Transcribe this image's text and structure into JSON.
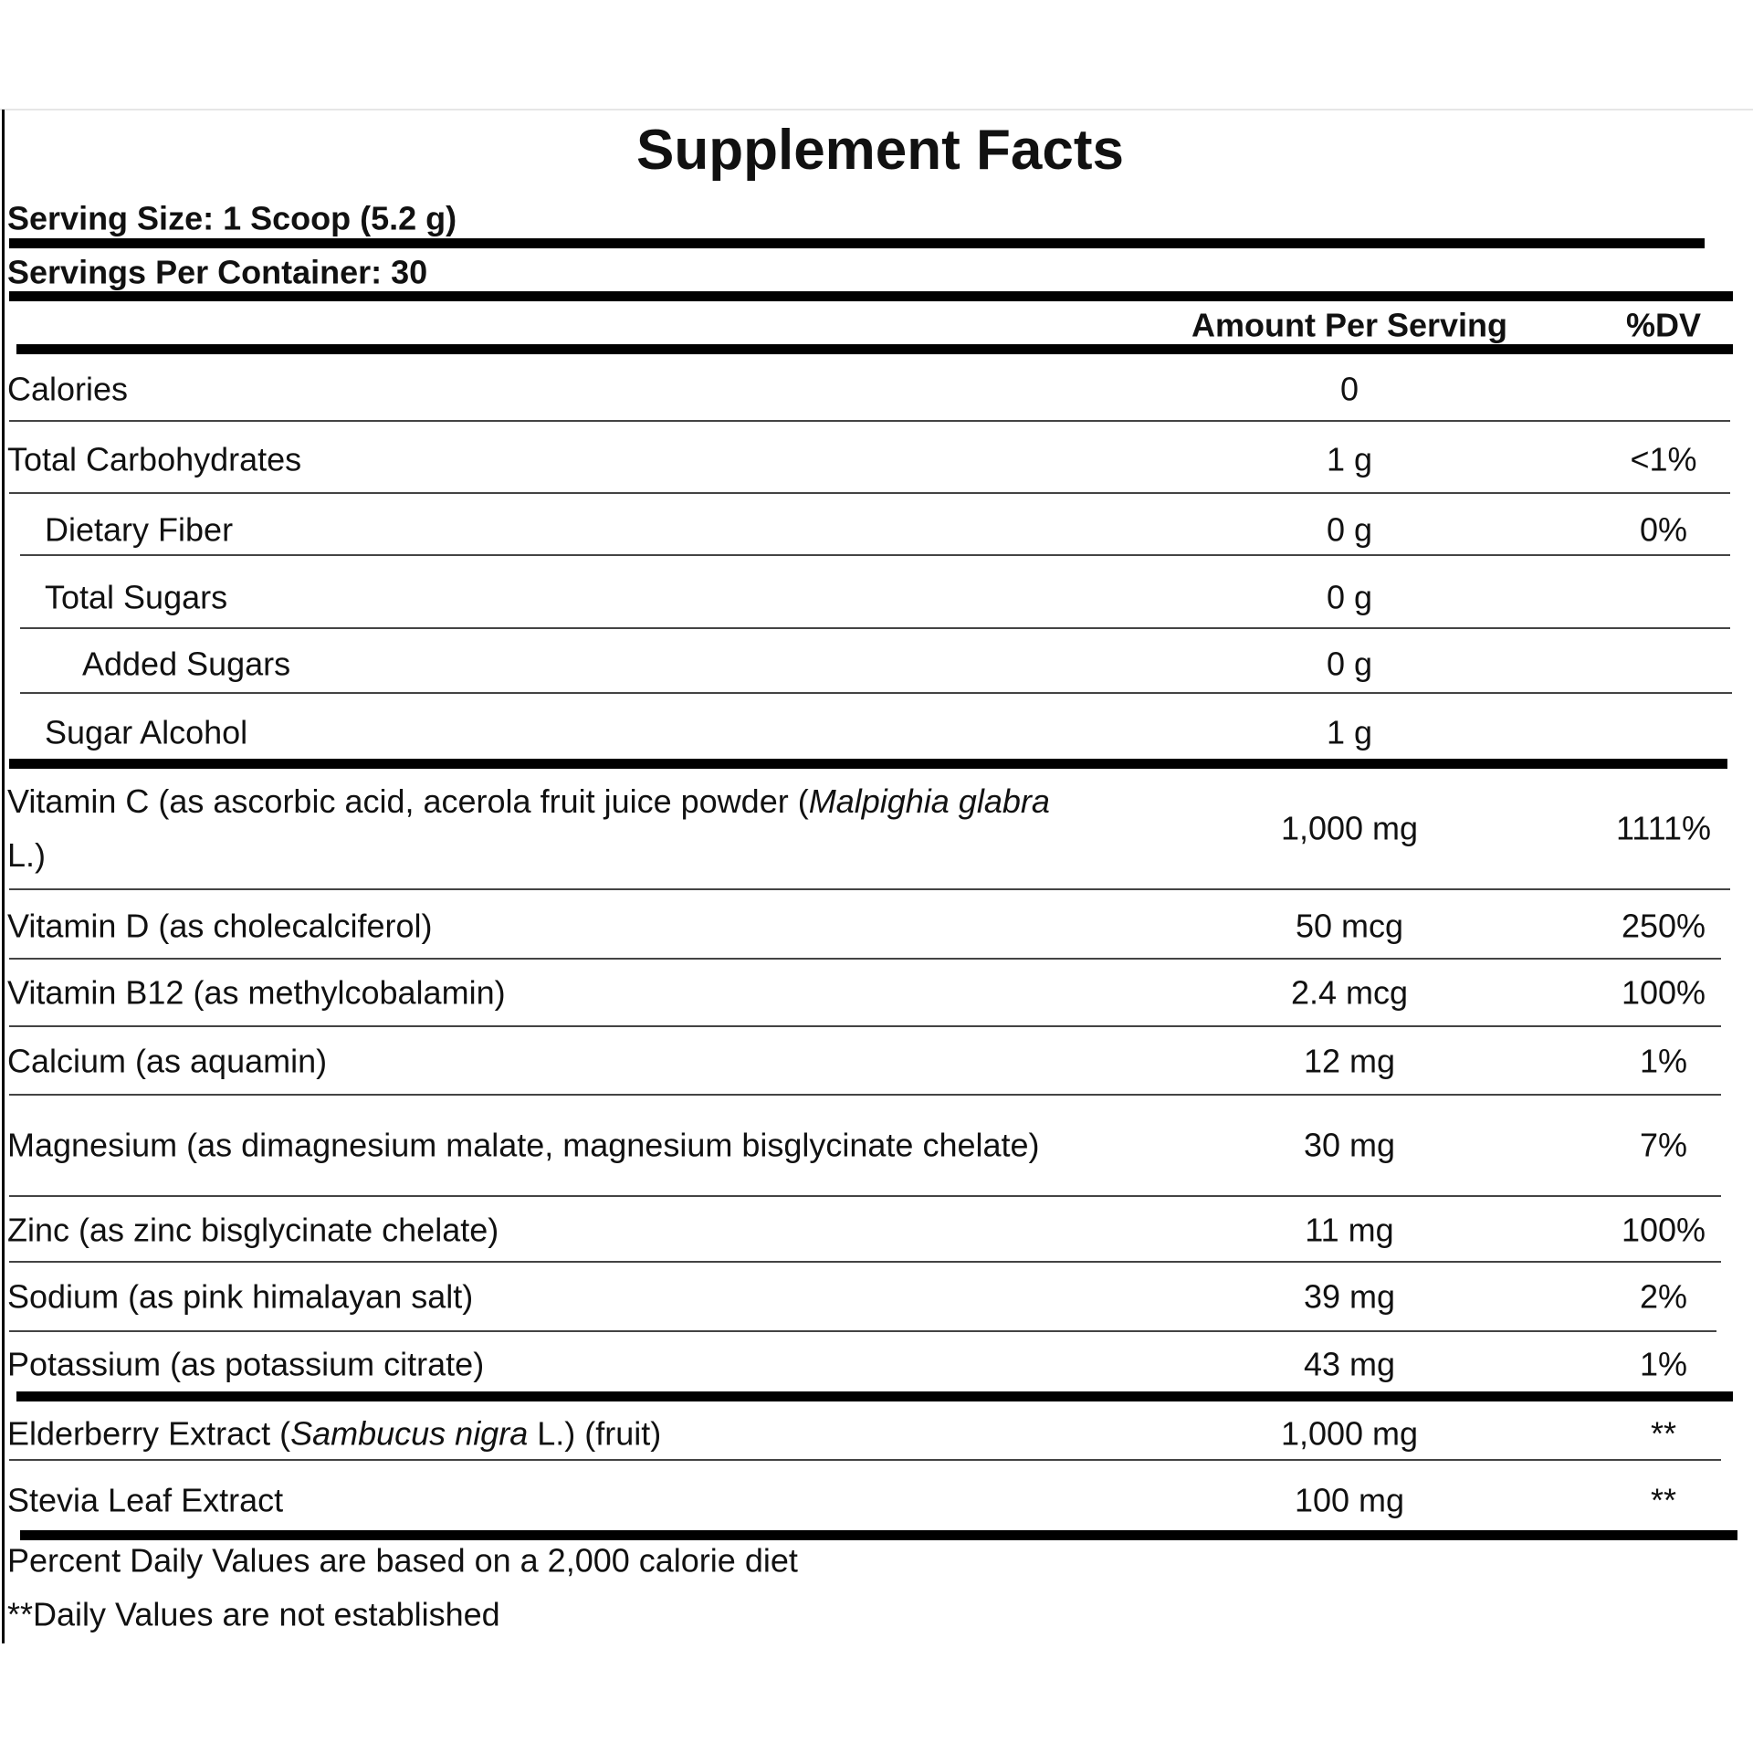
{
  "header": {
    "title": "Supplement Facts",
    "serving_size": "Serving Size: 1 Scoop (5.2 g)",
    "servings_per_container": "Servings Per Container: 30",
    "amount_header": "Amount Per Serving",
    "dv_header": "%DV"
  },
  "table": {
    "rows": [
      {
        "name": [
          {
            "text": "Calories"
          }
        ],
        "amount": "0"
      },
      {
        "name": [
          {
            "text": "Total Carbohydrates"
          }
        ],
        "amount": "1 g",
        "dv": "<1%"
      },
      {
        "name": [
          {
            "text": "Dietary Fiber"
          }
        ],
        "amount": "0 g",
        "dv": "0%",
        "indent": 1
      },
      {
        "name": [
          {
            "text": "Total Sugars"
          }
        ],
        "amount": "0 g",
        "indent": 1
      },
      {
        "name": [
          {
            "text": "Added Sugars"
          }
        ],
        "amount": "0 g",
        "indent": 2
      },
      {
        "name": [
          {
            "text": "Sugar Alcohol"
          }
        ],
        "amount": "1 g",
        "indent": 1
      },
      {
        "name": [
          {
            "text": "Vitamin C (as ascorbic acid, acerola fruit juice powder ("
          },
          {
            "text": "Malpighia glabra",
            "italic": true
          },
          {
            "text": " L.)"
          }
        ],
        "amount": "1,000 mg",
        "dv": "1111%"
      },
      {
        "name": [
          {
            "text": "Vitamin D (as cholecalciferol)"
          }
        ],
        "amount": "50 mcg",
        "dv": "250%"
      },
      {
        "name": [
          {
            "text": "Vitamin B12 (as methylcobalamin)"
          }
        ],
        "amount": "2.4 mcg",
        "dv": "100%"
      },
      {
        "name": [
          {
            "text": "Calcium (as aquamin)"
          }
        ],
        "amount": "12 mg",
        "dv": "1%"
      },
      {
        "name": [
          {
            "text": "Magnesium (as dimagnesium malate, magnesium bisglycinate chelate)"
          }
        ],
        "amount": "30 mg",
        "dv": "7%"
      },
      {
        "name": [
          {
            "text": "Zinc (as zinc bisglycinate chelate)"
          }
        ],
        "amount": "11 mg",
        "dv": "100%"
      },
      {
        "name": [
          {
            "text": "Sodium (as pink himalayan salt)"
          }
        ],
        "amount": "39 mg",
        "dv": "2%"
      },
      {
        "name": [
          {
            "text": "Potassium (as potassium citrate)"
          }
        ],
        "amount": "43 mg",
        "dv": "1%"
      },
      {
        "name": [
          {
            "text": "Elderberry Extract ("
          },
          {
            "text": "Sambucus nigra",
            "italic": true
          },
          {
            "text": " L.) (fruit)"
          }
        ],
        "amount": "1,000 mg",
        "dv": "**"
      },
      {
        "name": [
          {
            "text": "Stevia Leaf Extract"
          }
        ],
        "amount": "100 mg",
        "dv": "**"
      }
    ]
  },
  "footnotes": [
    "Percent Daily Values are based on a 2,000 calorie diet",
    "**Daily Values are not established"
  ]
}
